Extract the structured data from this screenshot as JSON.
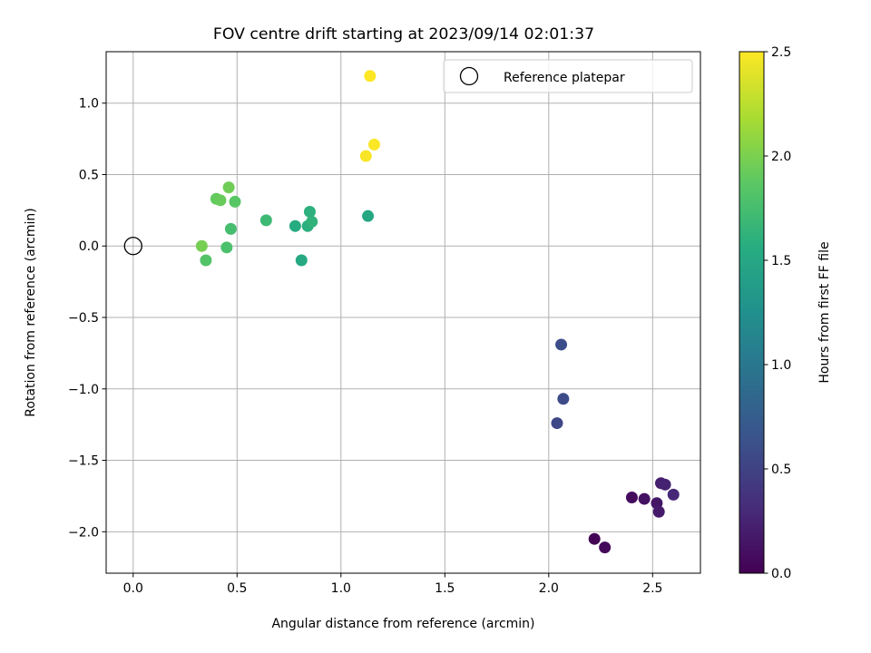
{
  "chart_data": {
    "type": "scatter",
    "title": "FOV centre drift starting at 2023/09/14 02:01:37",
    "xlabel": "Angular distance from reference (arcmin)",
    "ylabel": "Rotation from reference (arcmin)",
    "xlim": [
      -0.13,
      2.73
    ],
    "ylim": [
      -2.29,
      1.36
    ],
    "xticks": [
      0.0,
      0.5,
      1.0,
      1.5,
      2.0,
      2.5
    ],
    "xtick_labels": [
      "0.0",
      "0.5",
      "1.0",
      "1.5",
      "2.0",
      "2.5"
    ],
    "yticks": [
      -2.0,
      -1.5,
      -1.0,
      -0.5,
      0.0,
      0.5,
      1.0
    ],
    "ytick_labels": [
      "−2.0",
      "−1.5",
      "−1.0",
      "−0.5",
      "0.0",
      "0.5",
      "1.0"
    ],
    "grid": true,
    "legend": {
      "position": "top-right",
      "label": "Reference platepar"
    },
    "reference_point": {
      "x": 0.0,
      "y": 0.0
    },
    "colorbar": {
      "label": "Hours from first FF file",
      "min": 0.0,
      "max": 2.5,
      "ticks": [
        0.0,
        0.5,
        1.0,
        1.5,
        2.0,
        2.5
      ],
      "tick_labels": [
        "0.0",
        "0.5",
        "1.0",
        "1.5",
        "2.0",
        "2.5"
      ],
      "colormap": "viridis"
    },
    "points": [
      {
        "x": 2.22,
        "y": -2.05,
        "c": 0.02
      },
      {
        "x": 2.27,
        "y": -2.11,
        "c": 0.05
      },
      {
        "x": 2.4,
        "y": -1.76,
        "c": 0.08
      },
      {
        "x": 2.46,
        "y": -1.77,
        "c": 0.12
      },
      {
        "x": 2.52,
        "y": -1.8,
        "c": 0.15
      },
      {
        "x": 2.53,
        "y": -1.86,
        "c": 0.18
      },
      {
        "x": 2.54,
        "y": -1.66,
        "c": 0.22
      },
      {
        "x": 2.56,
        "y": -1.67,
        "c": 0.25
      },
      {
        "x": 2.6,
        "y": -1.74,
        "c": 0.28
      },
      {
        "x": 2.04,
        "y": -1.24,
        "c": 0.55
      },
      {
        "x": 2.07,
        "y": -1.07,
        "c": 0.58
      },
      {
        "x": 2.06,
        "y": -0.69,
        "c": 0.6
      },
      {
        "x": 1.13,
        "y": 0.21,
        "c": 1.5
      },
      {
        "x": 0.81,
        "y": -0.1,
        "c": 1.52
      },
      {
        "x": 0.78,
        "y": 0.14,
        "c": 1.55
      },
      {
        "x": 0.84,
        "y": 0.14,
        "c": 1.58
      },
      {
        "x": 0.85,
        "y": 0.24,
        "c": 1.6
      },
      {
        "x": 0.86,
        "y": 0.17,
        "c": 1.62
      },
      {
        "x": 0.64,
        "y": 0.18,
        "c": 1.7
      },
      {
        "x": 0.47,
        "y": 0.12,
        "c": 1.75
      },
      {
        "x": 0.45,
        "y": -0.01,
        "c": 1.78
      },
      {
        "x": 0.35,
        "y": -0.1,
        "c": 1.82
      },
      {
        "x": 0.49,
        "y": 0.31,
        "c": 1.85
      },
      {
        "x": 0.4,
        "y": 0.33,
        "c": 1.9
      },
      {
        "x": 0.42,
        "y": 0.32,
        "c": 1.92
      },
      {
        "x": 0.46,
        "y": 0.41,
        "c": 1.95
      },
      {
        "x": 0.33,
        "y": 0.0,
        "c": 1.98
      },
      {
        "x": 1.12,
        "y": 0.63,
        "c": 2.48
      },
      {
        "x": 1.16,
        "y": 0.71,
        "c": 2.49
      },
      {
        "x": 1.14,
        "y": 1.19,
        "c": 2.5
      }
    ]
  }
}
